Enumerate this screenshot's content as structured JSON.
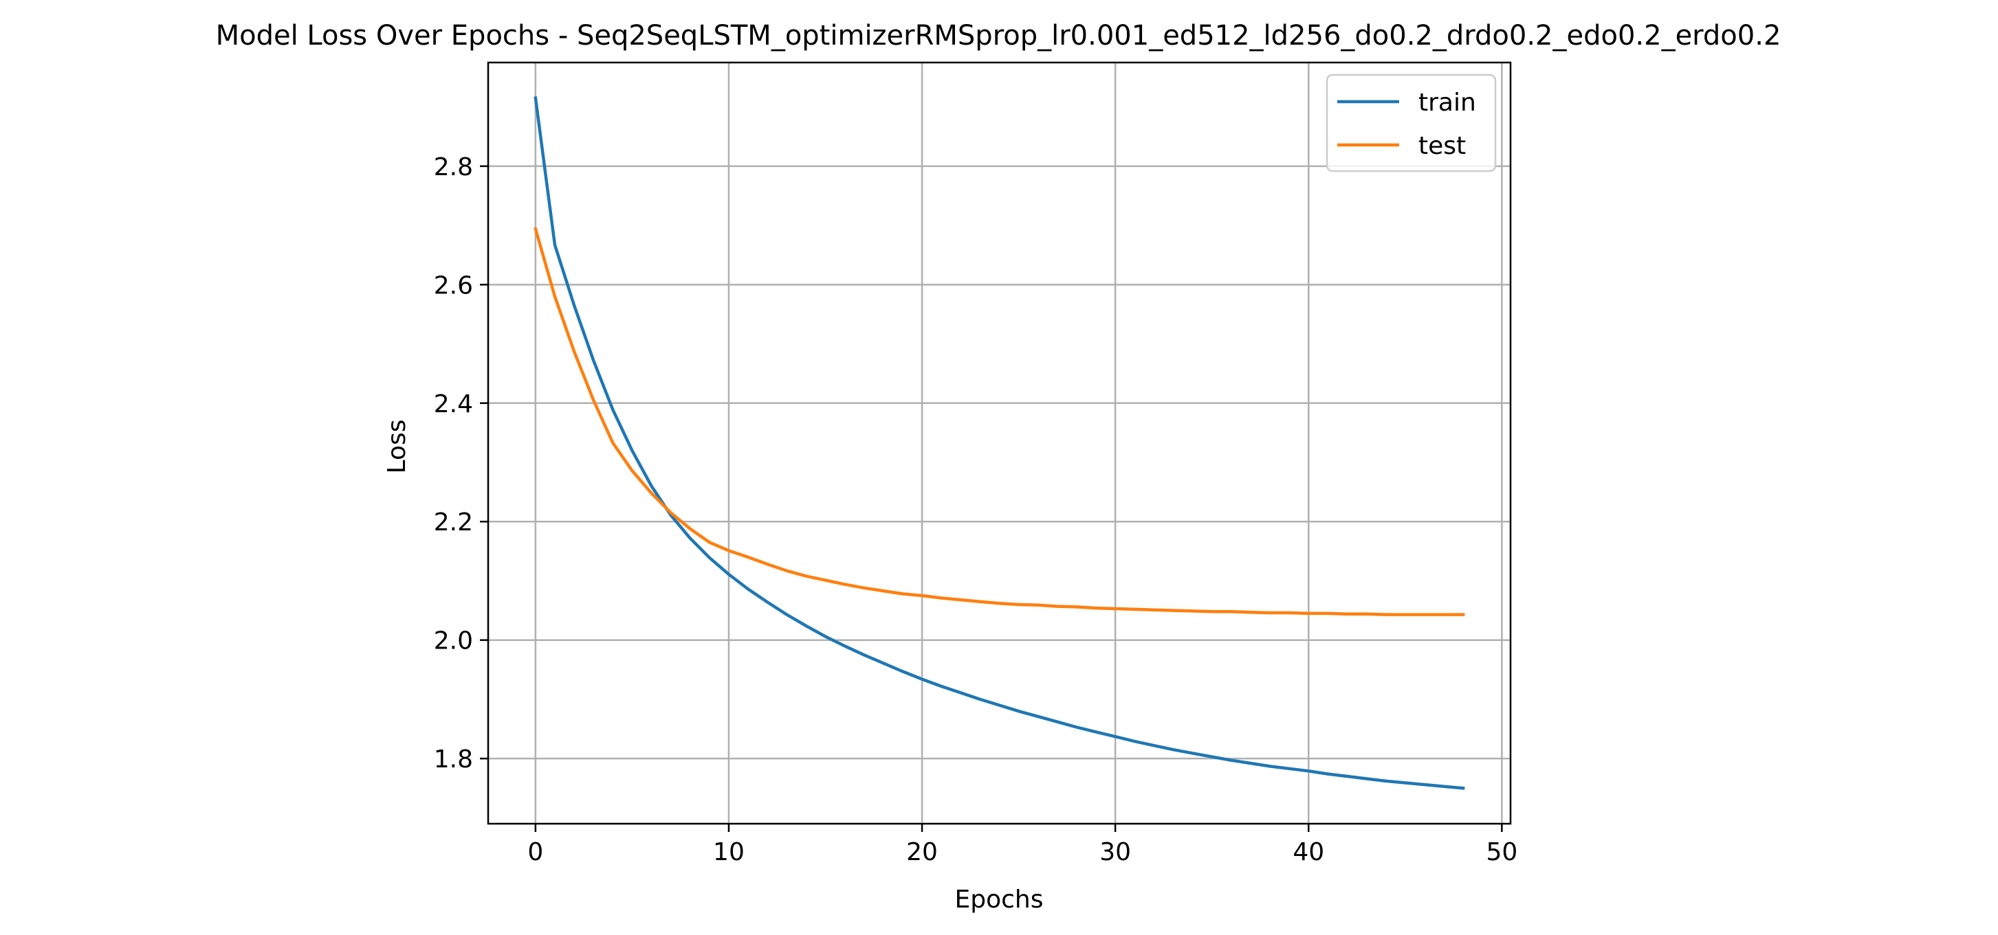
{
  "chart_data": {
    "type": "line",
    "title": "Model Loss Over Epochs - Seq2SeqLSTM_optimizerRMSprop_lr0.001_ed512_ld256_do0.2_drdo0.2_edo0.2_erdo0.2",
    "xlabel": "Epochs",
    "ylabel": "Loss",
    "xlim": [
      -2.45,
      50.45
    ],
    "ylim": [
      1.69,
      2.975
    ],
    "xticks": [
      0,
      10,
      20,
      30,
      40,
      50
    ],
    "yticks": [
      1.8,
      2.0,
      2.2,
      2.4,
      2.6,
      2.8
    ],
    "xtick_labels": [
      "0",
      "10",
      "20",
      "30",
      "40",
      "50"
    ],
    "ytick_labels": [
      "1.8",
      "2.0",
      "2.2",
      "2.4",
      "2.6",
      "2.8"
    ],
    "grid": true,
    "legend": "top-right",
    "x": [
      0,
      1,
      2,
      3,
      4,
      5,
      6,
      7,
      8,
      9,
      10,
      11,
      12,
      13,
      14,
      15,
      16,
      17,
      18,
      19,
      20,
      21,
      22,
      23,
      24,
      25,
      26,
      27,
      28,
      29,
      30,
      31,
      32,
      33,
      34,
      35,
      36,
      37,
      38,
      39,
      40,
      41,
      42,
      43,
      44,
      45,
      46,
      47,
      48
    ],
    "series": [
      {
        "name": "train",
        "color": "#1f77b4",
        "values": [
          2.915,
          2.667,
          2.565,
          2.472,
          2.389,
          2.32,
          2.26,
          2.211,
          2.172,
          2.139,
          2.111,
          2.086,
          2.064,
          2.043,
          2.024,
          2.006,
          1.99,
          1.975,
          1.961,
          1.947,
          1.934,
          1.922,
          1.911,
          1.9,
          1.89,
          1.88,
          1.871,
          1.862,
          1.853,
          1.845,
          1.837,
          1.829,
          1.822,
          1.815,
          1.809,
          1.803,
          1.797,
          1.792,
          1.787,
          1.783,
          1.779,
          1.774,
          1.77,
          1.766,
          1.762,
          1.759,
          1.756,
          1.753,
          1.75
        ]
      },
      {
        "name": "test",
        "color": "#ff7f0e",
        "values": [
          2.694,
          2.58,
          2.487,
          2.405,
          2.333,
          2.286,
          2.248,
          2.215,
          2.188,
          2.165,
          2.151,
          2.14,
          2.128,
          2.117,
          2.108,
          2.101,
          2.094,
          2.088,
          2.083,
          2.078,
          2.075,
          2.071,
          2.068,
          2.065,
          2.062,
          2.06,
          2.059,
          2.057,
          2.056,
          2.054,
          2.053,
          2.052,
          2.051,
          2.05,
          2.049,
          2.048,
          2.048,
          2.047,
          2.046,
          2.046,
          2.045,
          2.045,
          2.044,
          2.044,
          2.043,
          2.043,
          2.043,
          2.043,
          2.043
        ]
      }
    ]
  }
}
